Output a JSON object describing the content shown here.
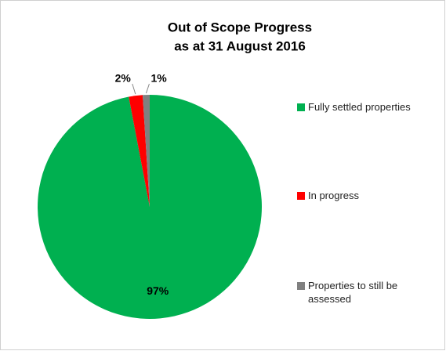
{
  "chart_data": {
    "type": "pie",
    "title": [
      "Out of Scope Progress",
      "as at 31 August 2016"
    ],
    "categories": [
      "Fully settled properties",
      "In progress",
      "Properties to still be assessed"
    ],
    "values": [
      97,
      2,
      1
    ],
    "value_labels": [
      "97%",
      "2%",
      "1%"
    ],
    "colors": [
      "#00b050",
      "#ff0000",
      "#808080"
    ],
    "legend": "right"
  }
}
